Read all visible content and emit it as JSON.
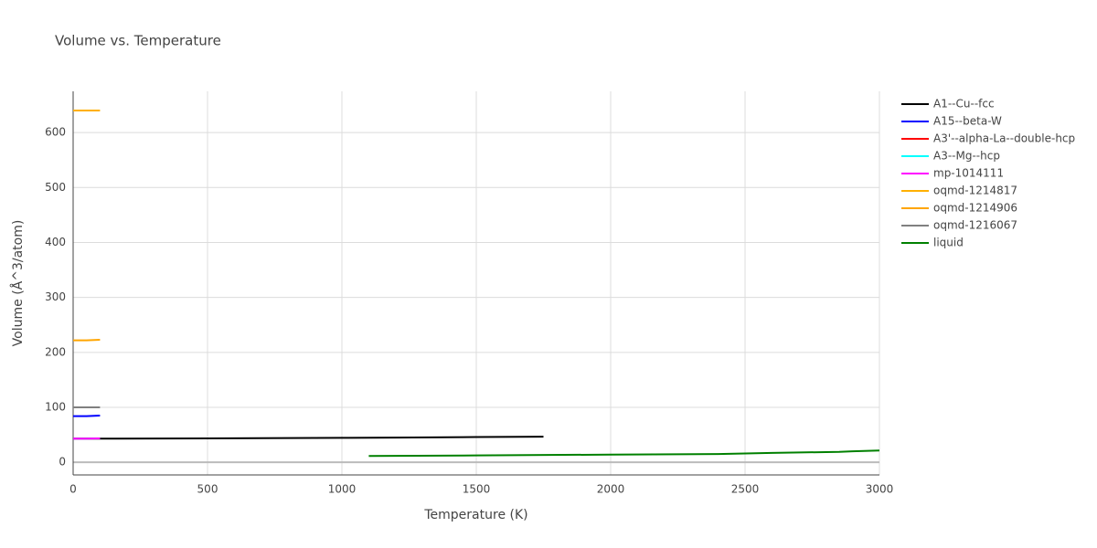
{
  "chart_data": {
    "type": "line",
    "title": "Volume vs. Temperature",
    "x_label": "Temperature (K)",
    "y_label": "Volume (Å^3/atom)",
    "xlim": [
      0,
      3000
    ],
    "ylim": [
      -23,
      675
    ],
    "xticks": [
      0,
      500,
      1000,
      1500,
      2000,
      2500,
      3000
    ],
    "yticks": [
      0,
      100,
      200,
      300,
      400,
      500,
      600
    ],
    "grid": true,
    "legend": "right",
    "series": [
      {
        "name": "A1--Cu--fcc",
        "color": "#000000",
        "x": [
          0,
          500,
          1000,
          1200,
          1500,
          1750
        ],
        "values": [
          43,
          43.5,
          44.5,
          45,
          46,
          46.5
        ]
      },
      {
        "name": "A15--beta-W",
        "color": "#0000ff",
        "x": [
          0,
          50,
          100
        ],
        "values": [
          84,
          84,
          85
        ]
      },
      {
        "name": "A3'--alpha-La--double-hcp",
        "color": "#ff0000",
        "x": [
          0,
          50,
          100
        ],
        "values": [
          43,
          43,
          43.5
        ]
      },
      {
        "name": "A3--Mg--hcp",
        "color": "#00ffff",
        "x": [
          0,
          50,
          100
        ],
        "values": [
          43,
          43,
          43.5
        ]
      },
      {
        "name": "mp-1014111",
        "color": "#ff00ff",
        "x": [
          0,
          50,
          100
        ],
        "values": [
          43,
          43,
          43.5
        ]
      },
      {
        "name": "oqmd-1214817",
        "color": "#ffb000",
        "x": [
          0,
          50,
          100
        ],
        "values": [
          640,
          640,
          640
        ]
      },
      {
        "name": "oqmd-1214906",
        "color": "#ffa500",
        "x": [
          0,
          50,
          100
        ],
        "values": [
          222,
          222,
          223
        ]
      },
      {
        "name": "oqmd-1216067",
        "color": "#808080",
        "x": [
          0,
          50,
          100
        ],
        "values": [
          100,
          100,
          100
        ]
      },
      {
        "name": "liquid",
        "color": "#008000",
        "x": [
          1100,
          1500,
          2000,
          2400,
          2600,
          2850,
          2900,
          3000
        ],
        "values": [
          11.5,
          12.5,
          14,
          15,
          17,
          19,
          20,
          21.5
        ]
      }
    ]
  }
}
